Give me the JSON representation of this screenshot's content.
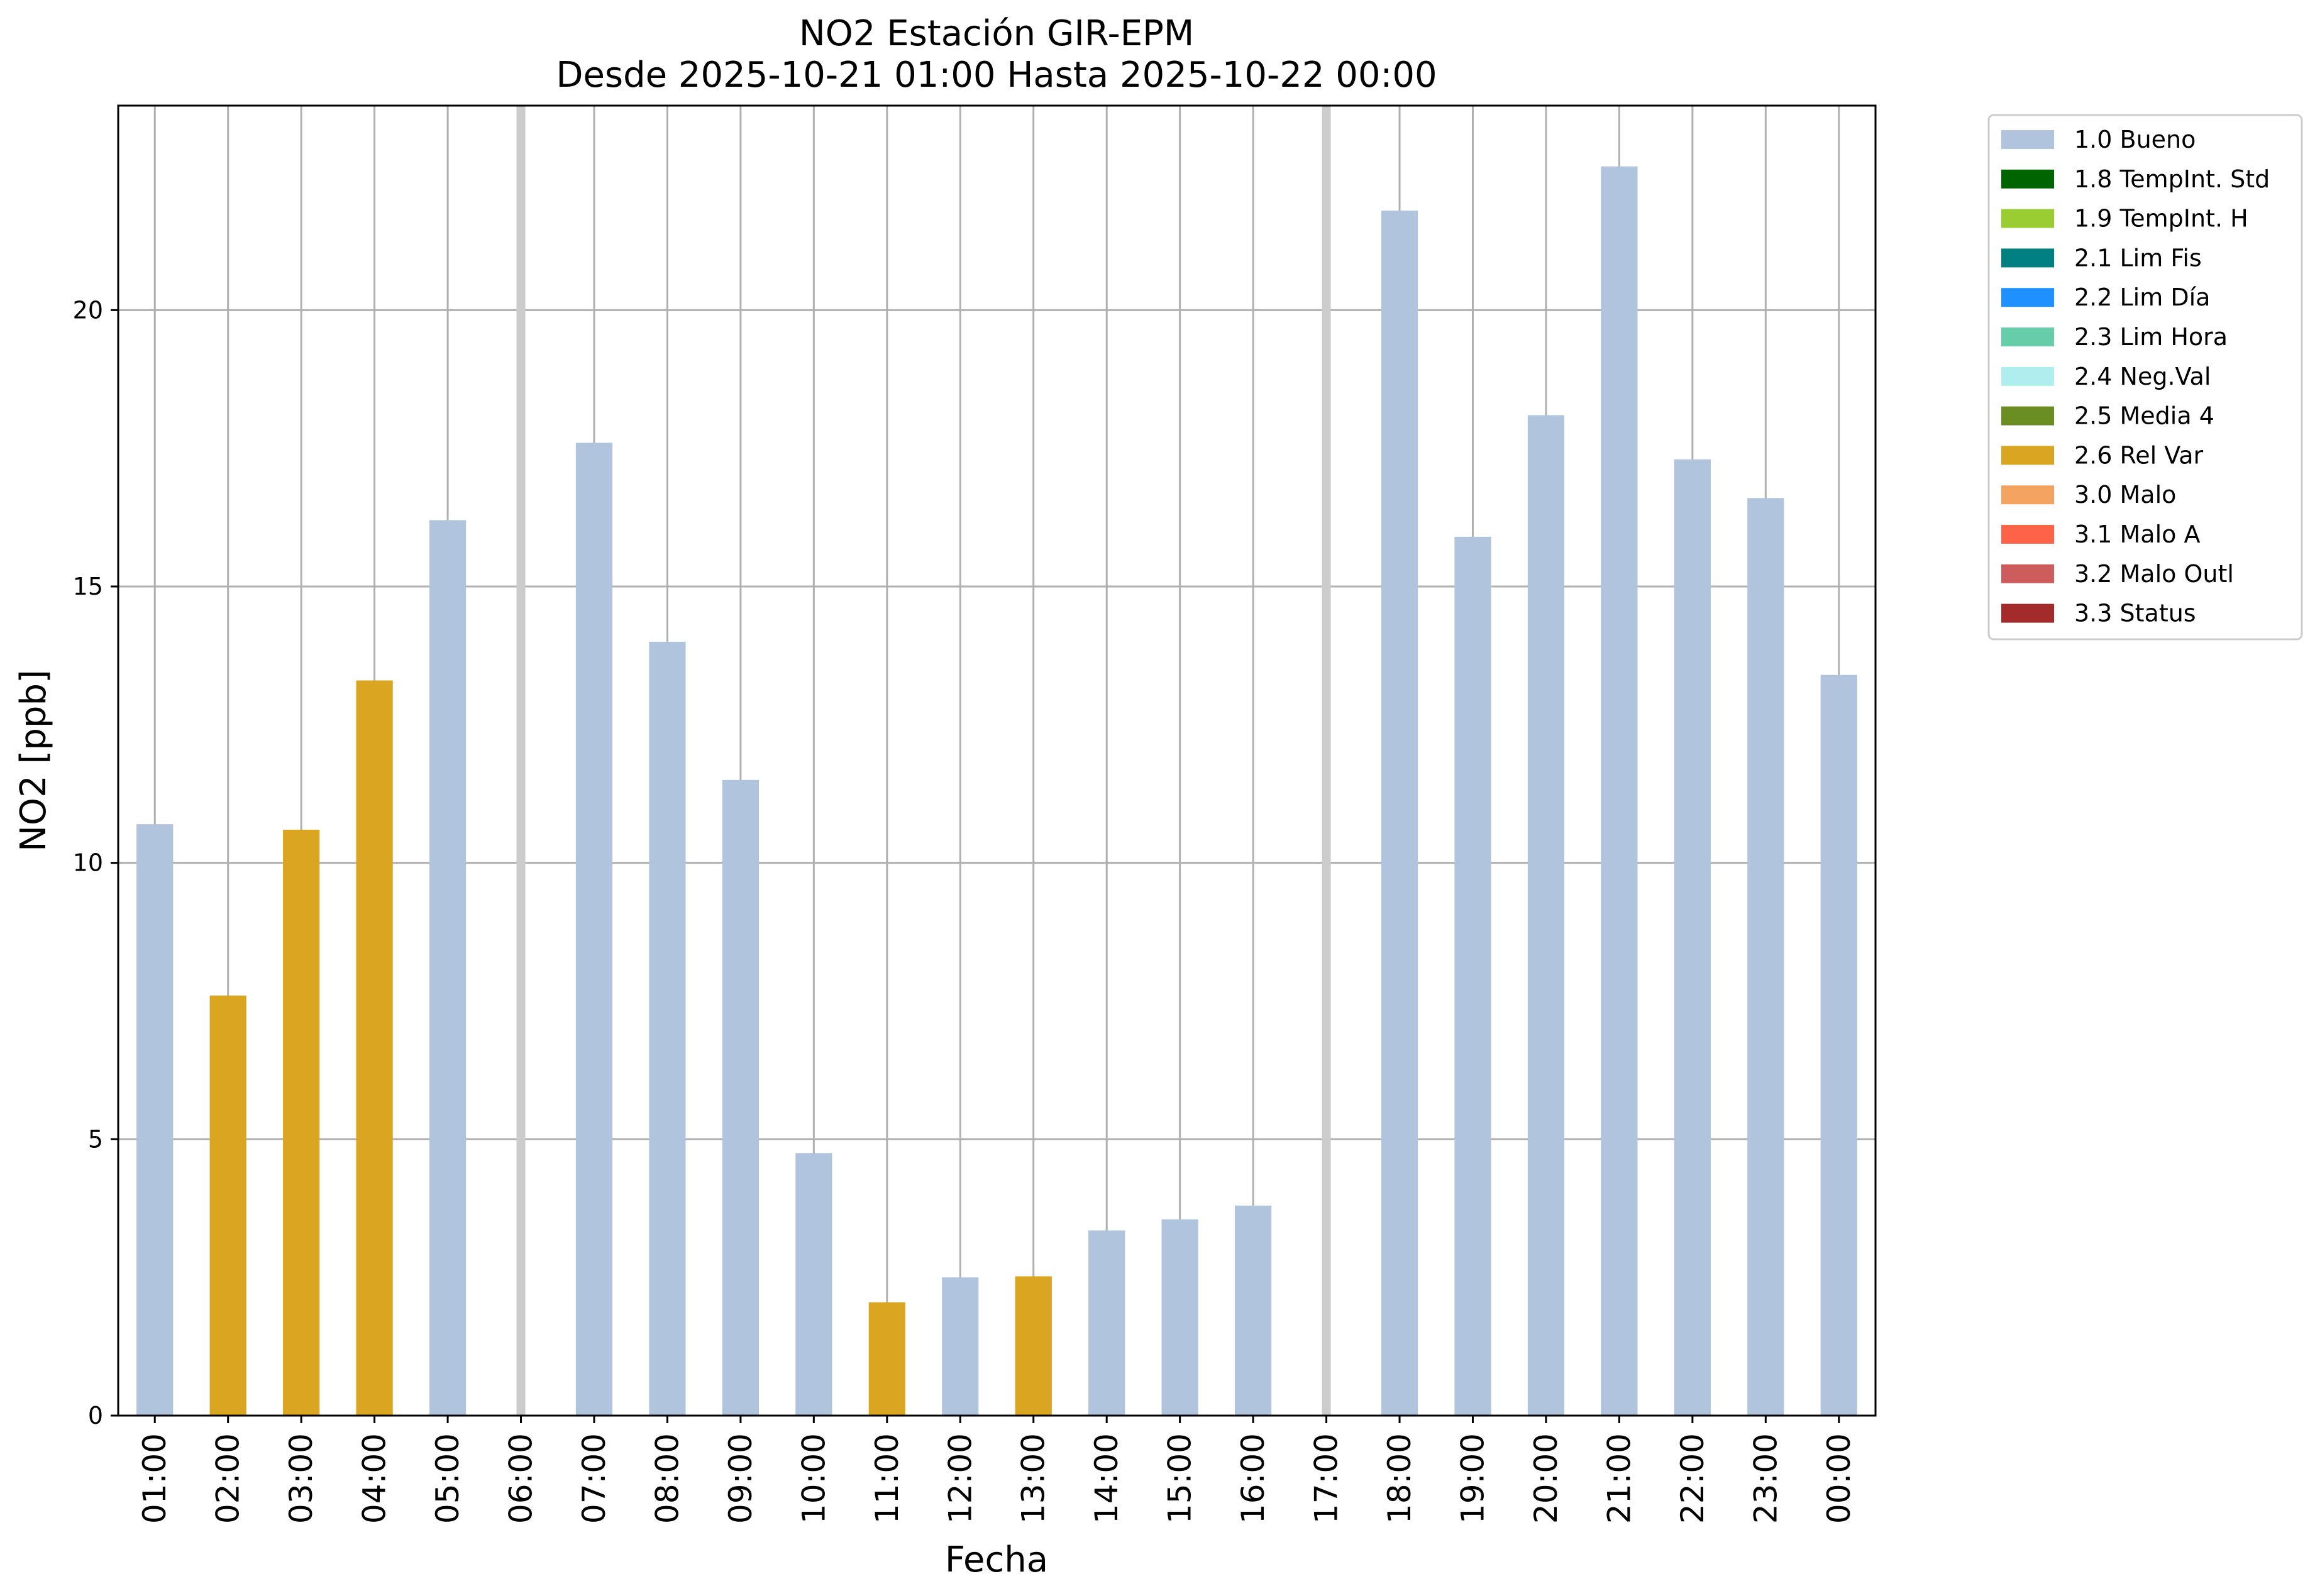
{
  "chart_data": {
    "type": "bar",
    "title": "NO2 Estación GIR-EPM",
    "subtitle": "Desde 2025-10-21 01:00 Hasta 2025-10-22 00:00",
    "xlabel": "Fecha",
    "ylabel": "NO2 [ppb]",
    "ylim": [
      0,
      23.7
    ],
    "yticks": [
      0,
      5,
      10,
      15,
      20
    ],
    "grid": true,
    "legend_position": "outside-right-top",
    "categories": [
      "01:00",
      "02:00",
      "03:00",
      "04:00",
      "05:00",
      "06:00",
      "07:00",
      "08:00",
      "09:00",
      "10:00",
      "11:00",
      "12:00",
      "13:00",
      "14:00",
      "15:00",
      "16:00",
      "17:00",
      "18:00",
      "19:00",
      "20:00",
      "21:00",
      "22:00",
      "23:00",
      "00:00"
    ],
    "values": [
      10.7,
      7.6,
      10.6,
      13.3,
      16.2,
      null,
      17.6,
      14.0,
      11.5,
      4.75,
      2.05,
      2.5,
      2.52,
      3.35,
      3.55,
      3.8,
      null,
      21.8,
      15.9,
      18.1,
      22.6,
      17.3,
      16.6,
      13.4
    ],
    "flags": [
      "1.0 Bueno",
      "2.6 Rel Var",
      "2.6 Rel Var",
      "2.6 Rel Var",
      "1.0 Bueno",
      null,
      "1.0 Bueno",
      "1.0 Bueno",
      "1.0 Bueno",
      "1.0 Bueno",
      "2.6 Rel Var",
      "1.0 Bueno",
      "2.6 Rel Var",
      "1.0 Bueno",
      "1.0 Bueno",
      "1.0 Bueno",
      null,
      "1.0 Bueno",
      "1.0 Bueno",
      "1.0 Bueno",
      "1.0 Bueno",
      "1.0 Bueno",
      "1.0 Bueno",
      "1.0 Bueno"
    ],
    "missing_markers": [
      "06:00",
      "17:00"
    ],
    "legend": [
      {
        "name": "1.0 Bueno",
        "color": "#b0c4de"
      },
      {
        "name": "1.8 TempInt. Std",
        "color": "#006400"
      },
      {
        "name": "1.9 TempInt. H",
        "color": "#9acd32"
      },
      {
        "name": "2.1 Lim Fis",
        "color": "#008080"
      },
      {
        "name": "2.2 Lim Día",
        "color": "#1e90ff"
      },
      {
        "name": "2.3 Lim Hora",
        "color": "#66cdaa"
      },
      {
        "name": "2.4 Neg.Val",
        "color": "#afeeee"
      },
      {
        "name": "2.5 Media 4",
        "color": "#6b8e23"
      },
      {
        "name": "2.6 Rel Var",
        "color": "#daa520"
      },
      {
        "name": "3.0 Malo",
        "color": "#f4a460"
      },
      {
        "name": "3.1 Malo A",
        "color": "#ff6347"
      },
      {
        "name": "3.2 Malo Outl",
        "color": "#cd5c5c"
      },
      {
        "name": "3.3 Status",
        "color": "#a52a2a"
      }
    ],
    "colors": {
      "grid": "#b0b0b0",
      "missing_marker": "#cccccc",
      "frame": "#000000"
    }
  }
}
